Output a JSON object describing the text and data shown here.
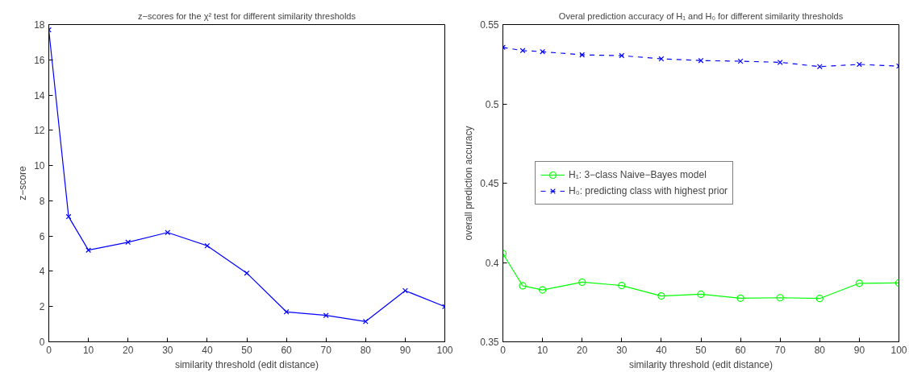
{
  "chart_data": [
    {
      "type": "line",
      "title": "z−scores for the χ² test for different similarity thresholds",
      "xlabel": "similarity threshold (edit distance)",
      "ylabel": "z−score",
      "x": [
        0,
        5,
        10,
        20,
        30,
        40,
        50,
        60,
        70,
        80,
        90,
        100
      ],
      "series": [
        {
          "color": "#0000ff",
          "marker": "cross",
          "line_style": "solid",
          "values": [
            17.7,
            7.1,
            5.2,
            5.65,
            6.2,
            5.45,
            3.9,
            1.7,
            1.5,
            1.15,
            2.9,
            2.0
          ]
        }
      ],
      "xlim": [
        0,
        100
      ],
      "xticks": [
        0,
        10,
        20,
        30,
        40,
        50,
        60,
        70,
        80,
        90,
        100
      ],
      "ylim": [
        0,
        18
      ],
      "yticks": [
        0,
        2,
        4,
        6,
        8,
        10,
        12,
        14,
        16,
        18
      ],
      "grid": false,
      "legend": false
    },
    {
      "type": "line",
      "title": "Overal prediction accuracy of H₁ and H₀ for different similarity thresholds",
      "xlabel": "similarity threshold (edit distance)",
      "ylabel": "overall prediction accuracy",
      "x": [
        0,
        5,
        10,
        20,
        30,
        40,
        50,
        60,
        70,
        80,
        90,
        100
      ],
      "series": [
        {
          "name": "H₁: 3−class Naive−Bayes model",
          "color": "#00ff00",
          "marker": "circle",
          "line_style": "solid",
          "values": [
            0.4056,
            0.3853,
            0.3827,
            0.3876,
            0.3855,
            0.3789,
            0.38,
            0.3775,
            0.3778,
            0.3773,
            0.3869,
            0.3871
          ]
        },
        {
          "name": "H₀: predicting class with highest prior",
          "color": "#0000ff",
          "marker": "cross",
          "line_style": "dashed",
          "values": [
            0.5356,
            0.5336,
            0.5329,
            0.5309,
            0.5304,
            0.5284,
            0.5273,
            0.5269,
            0.5262,
            0.5235,
            0.5249,
            0.5238
          ]
        }
      ],
      "xlim": [
        0,
        100
      ],
      "xticks": [
        0,
        10,
        20,
        30,
        40,
        50,
        60,
        70,
        80,
        90,
        100
      ],
      "ylim": [
        0.35,
        0.55
      ],
      "yticks": [
        0.35,
        0.4,
        0.45,
        0.5,
        0.55
      ],
      "grid": false,
      "legend": "left"
    }
  ]
}
